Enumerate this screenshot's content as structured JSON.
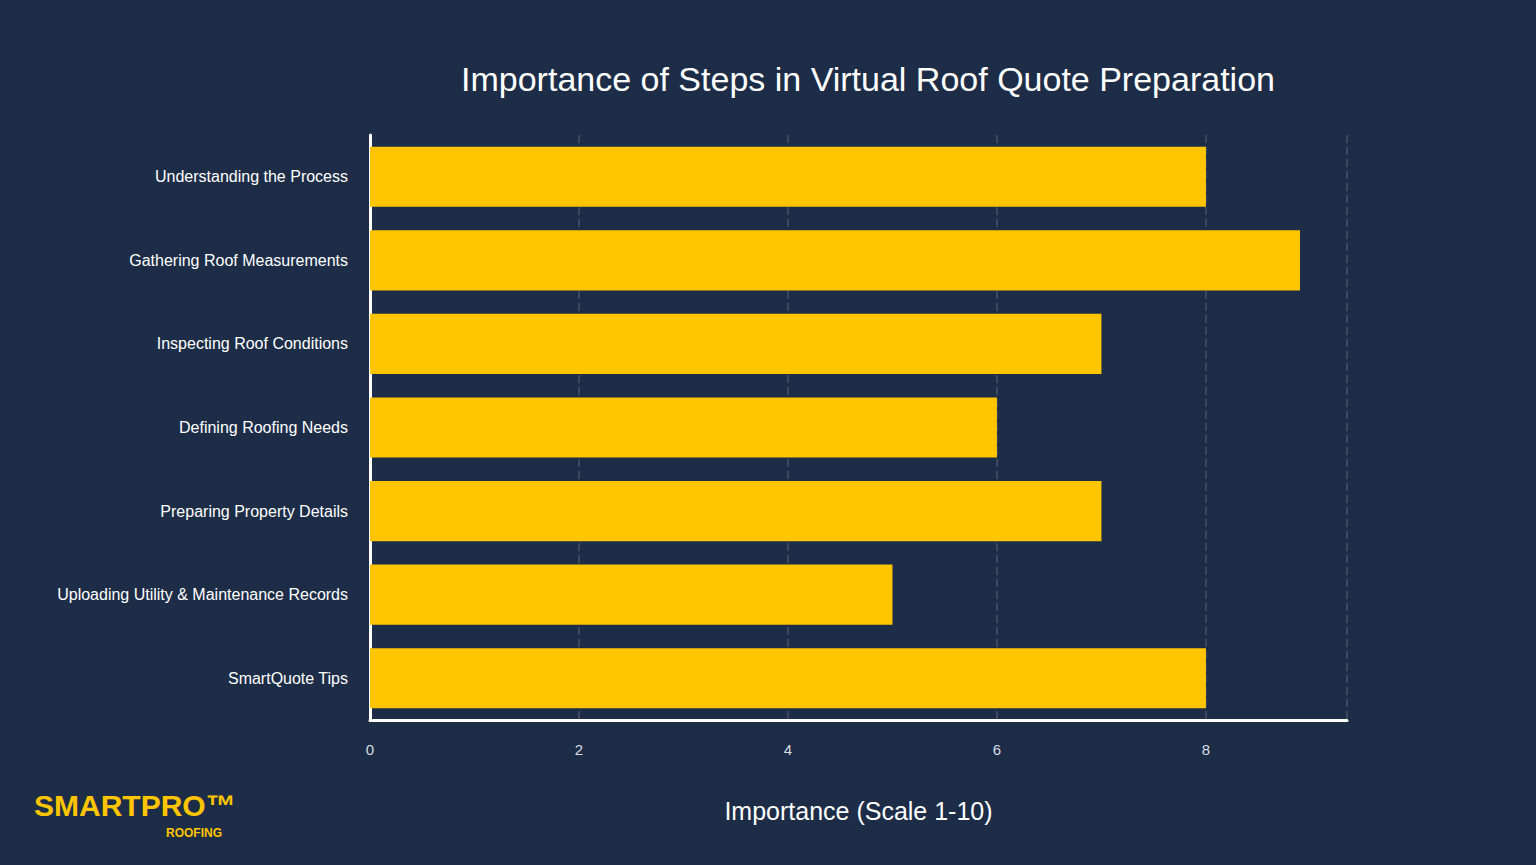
{
  "chart_data": {
    "type": "bar",
    "orientation": "horizontal",
    "title": "Importance of Steps in Virtual Roof Quote Preparation",
    "xlabel": "Importance (Scale 1-10)",
    "categories": [
      "Understanding the Process",
      "Gathering Roof Measurements",
      "Inspecting Roof Conditions",
      "Defining Roofing Needs",
      "Preparing Property Details",
      "Uploading Utility & Maintenance Records",
      "SmartQuote Tips"
    ],
    "values": [
      8,
      8.9,
      7,
      6,
      7,
      5,
      8
    ],
    "color": "#ffc500",
    "xlim": [
      0,
      9.35
    ],
    "xticks": [
      0,
      2,
      4,
      6,
      8
    ],
    "grid": true,
    "annotations": [
      "SMARTPRO™",
      "ROOFING"
    ]
  }
}
